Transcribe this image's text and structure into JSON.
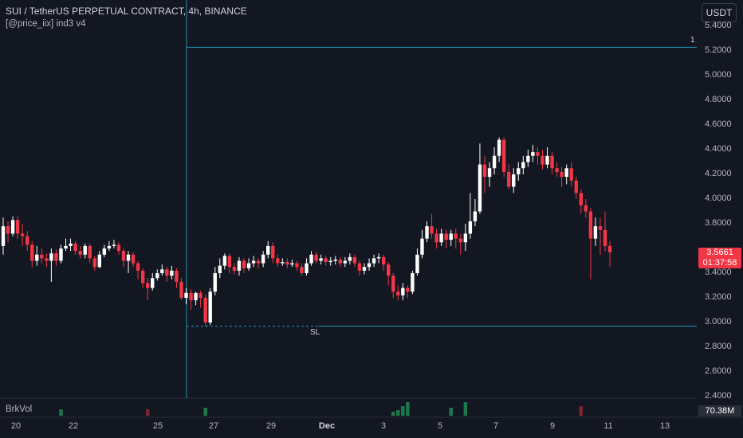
{
  "legend": {
    "title": "SUI / TetherUS PERPETUAL CONTRACT, 4h, BINANCE",
    "indicator": "[@price_iix] ind3 v4"
  },
  "currency_button": "USDT",
  "price_axis": {
    "ticks": [
      "5.4000",
      "5.2000",
      "5.0000",
      "4.8000",
      "4.6000",
      "4.4000",
      "4.2000",
      "4.0000",
      "3.8000",
      "3.4000",
      "3.2000",
      "3.0000",
      "2.8000",
      "2.6000",
      "2.4000"
    ]
  },
  "time_axis": {
    "ticks": [
      "20",
      "22",
      "25",
      "27",
      "29",
      "Dec",
      "3",
      "5",
      "7",
      "9",
      "11",
      "13"
    ]
  },
  "last_price": {
    "price": "3.5661",
    "countdown": "01:37:58"
  },
  "drawings": {
    "level_label": "1",
    "stop_label": "SL"
  },
  "volume_pane": {
    "name": "BrkVol",
    "value": "70.38M"
  },
  "colors": {
    "up": "#ffffff",
    "down": "#f23645",
    "line": "#2196b3",
    "vol_up": "#1b7a4c",
    "vol_down": "#7f2630"
  },
  "chart_data": {
    "type": "candlestick",
    "title": "SUI / TetherUS PERPETUAL CONTRACT, 4h, BINANCE",
    "ylim": [
      2.4,
      5.4
    ],
    "lines": {
      "level": 5.23,
      "stop": 2.97
    },
    "volume_spikes": [
      {
        "t": 12,
        "dir": "up",
        "level": 0.4
      },
      {
        "t": 30,
        "dir": "down",
        "level": 0.4
      },
      {
        "t": 42,
        "dir": "up",
        "level": 0.5
      },
      {
        "t": 81,
        "dir": "up",
        "level": 0.25
      },
      {
        "t": 82,
        "dir": "up",
        "level": 0.35
      },
      {
        "t": 83,
        "dir": "up",
        "level": 0.6
      },
      {
        "t": 84,
        "dir": "up",
        "level": 0.85
      },
      {
        "t": 93,
        "dir": "up",
        "level": 0.5
      },
      {
        "t": 96,
        "dir": "up",
        "level": 0.85
      },
      {
        "t": 120,
        "dir": "down",
        "level": 0.6
      }
    ],
    "candles": [
      [
        3.62,
        3.78,
        3.85,
        3.55
      ],
      [
        3.78,
        3.72,
        3.82,
        3.65
      ],
      [
        3.72,
        3.83,
        3.86,
        3.7
      ],
      [
        3.83,
        3.72,
        3.86,
        3.68
      ],
      [
        3.72,
        3.7,
        3.8,
        3.62
      ],
      [
        3.7,
        3.63,
        3.74,
        3.58
      ],
      [
        3.63,
        3.5,
        3.66,
        3.45
      ],
      [
        3.5,
        3.55,
        3.62,
        3.46
      ],
      [
        3.55,
        3.52,
        3.6,
        3.48
      ],
      [
        3.52,
        3.5,
        3.56,
        3.45
      ],
      [
        3.5,
        3.56,
        3.6,
        3.33
      ],
      [
        3.56,
        3.5,
        3.59,
        3.46
      ],
      [
        3.5,
        3.6,
        3.63,
        3.48
      ],
      [
        3.6,
        3.62,
        3.68,
        3.58
      ],
      [
        3.62,
        3.64,
        3.68,
        3.58
      ],
      [
        3.64,
        3.58,
        3.66,
        3.55
      ],
      [
        3.58,
        3.55,
        3.62,
        3.52
      ],
      [
        3.55,
        3.62,
        3.64,
        3.52
      ],
      [
        3.62,
        3.52,
        3.64,
        3.48
      ],
      [
        3.52,
        3.45,
        3.54,
        3.42
      ],
      [
        3.45,
        3.55,
        3.58,
        3.44
      ],
      [
        3.55,
        3.6,
        3.63,
        3.53
      ],
      [
        3.6,
        3.62,
        3.66,
        3.58
      ],
      [
        3.62,
        3.63,
        3.67,
        3.6
      ],
      [
        3.63,
        3.58,
        3.65,
        3.55
      ],
      [
        3.58,
        3.5,
        3.6,
        3.45
      ],
      [
        3.5,
        3.55,
        3.58,
        3.4
      ],
      [
        3.55,
        3.48,
        3.57,
        3.45
      ],
      [
        3.48,
        3.42,
        3.5,
        3.35
      ],
      [
        3.42,
        3.32,
        3.44,
        3.28
      ],
      [
        3.32,
        3.28,
        3.36,
        3.18
      ],
      [
        3.28,
        3.36,
        3.4,
        3.26
      ],
      [
        3.36,
        3.4,
        3.43,
        3.34
      ],
      [
        3.4,
        3.43,
        3.47,
        3.38
      ],
      [
        3.43,
        3.38,
        3.45,
        3.33
      ],
      [
        3.38,
        3.42,
        3.46,
        3.35
      ],
      [
        3.42,
        3.33,
        3.44,
        3.28
      ],
      [
        3.33,
        3.2,
        3.36,
        3.18
      ],
      [
        3.2,
        3.24,
        3.28,
        3.15
      ],
      [
        3.24,
        3.18,
        3.27,
        3.1
      ],
      [
        3.18,
        3.24,
        3.25,
        3.14
      ],
      [
        3.24,
        3.2,
        3.26,
        3.12
      ],
      [
        3.2,
        3.0,
        3.23,
        2.97
      ],
      [
        3.0,
        3.25,
        3.28,
        2.98
      ],
      [
        3.25,
        3.4,
        3.45,
        3.22
      ],
      [
        3.4,
        3.46,
        3.52,
        3.36
      ],
      [
        3.46,
        3.54,
        3.56,
        3.43
      ],
      [
        3.54,
        3.45,
        3.56,
        3.4
      ],
      [
        3.45,
        3.42,
        3.48,
        3.39
      ],
      [
        3.42,
        3.5,
        3.53,
        3.38
      ],
      [
        3.5,
        3.44,
        3.52,
        3.4
      ],
      [
        3.44,
        3.48,
        3.52,
        3.42
      ],
      [
        3.48,
        3.5,
        3.54,
        3.45
      ],
      [
        3.5,
        3.48,
        3.52,
        3.44
      ],
      [
        3.48,
        3.55,
        3.58,
        3.45
      ],
      [
        3.55,
        3.62,
        3.66,
        3.52
      ],
      [
        3.62,
        3.52,
        3.65,
        3.48
      ],
      [
        3.52,
        3.48,
        3.55,
        3.45
      ],
      [
        3.48,
        3.49,
        3.52,
        3.46
      ],
      [
        3.49,
        3.47,
        3.52,
        3.44
      ],
      [
        3.47,
        3.48,
        3.51,
        3.45
      ],
      [
        3.48,
        3.45,
        3.5,
        3.42
      ],
      [
        3.45,
        3.4,
        3.48,
        3.38
      ],
      [
        3.4,
        3.48,
        3.52,
        3.38
      ],
      [
        3.48,
        3.55,
        3.58,
        3.46
      ],
      [
        3.55,
        3.5,
        3.57,
        3.48
      ],
      [
        3.5,
        3.52,
        3.55,
        3.47
      ],
      [
        3.52,
        3.49,
        3.54,
        3.46
      ],
      [
        3.49,
        3.5,
        3.53,
        3.46
      ],
      [
        3.5,
        3.51,
        3.54,
        3.47
      ],
      [
        3.51,
        3.48,
        3.53,
        3.45
      ],
      [
        3.48,
        3.5,
        3.53,
        3.45
      ],
      [
        3.5,
        3.53,
        3.56,
        3.47
      ],
      [
        3.53,
        3.48,
        3.55,
        3.45
      ],
      [
        3.48,
        3.42,
        3.5,
        3.38
      ],
      [
        3.42,
        3.45,
        3.48,
        3.39
      ],
      [
        3.45,
        3.48,
        3.52,
        3.42
      ],
      [
        3.48,
        3.52,
        3.55,
        3.45
      ],
      [
        3.52,
        3.53,
        3.56,
        3.48
      ],
      [
        3.53,
        3.47,
        3.55,
        3.42
      ],
      [
        3.47,
        3.38,
        3.49,
        3.3
      ],
      [
        3.38,
        3.25,
        3.4,
        3.2
      ],
      [
        3.25,
        3.22,
        3.3,
        3.18
      ],
      [
        3.22,
        3.28,
        3.32,
        3.18
      ],
      [
        3.28,
        3.25,
        3.3,
        3.2
      ],
      [
        3.25,
        3.4,
        3.42,
        3.23
      ],
      [
        3.4,
        3.55,
        3.6,
        3.38
      ],
      [
        3.55,
        3.68,
        3.75,
        3.52
      ],
      [
        3.68,
        3.78,
        3.82,
        3.65
      ],
      [
        3.78,
        3.72,
        3.88,
        3.68
      ],
      [
        3.72,
        3.65,
        3.76,
        3.6
      ],
      [
        3.65,
        3.72,
        3.76,
        3.62
      ],
      [
        3.72,
        3.67,
        3.75,
        3.6
      ],
      [
        3.67,
        3.72,
        3.75,
        3.62
      ],
      [
        3.72,
        3.68,
        3.76,
        3.6
      ],
      [
        3.68,
        3.65,
        3.72,
        3.55
      ],
      [
        3.65,
        3.72,
        3.8,
        3.58
      ],
      [
        3.72,
        3.82,
        4.05,
        3.68
      ],
      [
        3.82,
        3.9,
        4.0,
        3.78
      ],
      [
        3.9,
        4.28,
        4.45,
        3.88
      ],
      [
        4.28,
        4.18,
        4.35,
        4.05
      ],
      [
        4.18,
        4.25,
        4.3,
        4.1
      ],
      [
        4.25,
        4.35,
        4.42,
        4.2
      ],
      [
        4.35,
        4.48,
        4.5,
        4.3
      ],
      [
        4.48,
        4.22,
        4.5,
        4.18
      ],
      [
        4.22,
        4.1,
        4.28,
        4.08
      ],
      [
        4.1,
        4.2,
        4.25,
        4.05
      ],
      [
        4.2,
        4.25,
        4.3,
        4.15
      ],
      [
        4.25,
        4.3,
        4.35,
        4.2
      ],
      [
        4.3,
        4.35,
        4.4,
        4.26
      ],
      [
        4.35,
        4.38,
        4.44,
        4.3
      ],
      [
        4.38,
        4.35,
        4.42,
        4.28
      ],
      [
        4.35,
        4.28,
        4.4,
        4.24
      ],
      [
        4.28,
        4.35,
        4.42,
        4.25
      ],
      [
        4.35,
        4.25,
        4.38,
        4.2
      ],
      [
        4.25,
        4.22,
        4.3,
        4.18
      ],
      [
        4.22,
        4.18,
        4.26,
        4.1
      ],
      [
        4.18,
        4.25,
        4.28,
        4.12
      ],
      [
        4.25,
        4.15,
        4.3,
        4.1
      ],
      [
        4.15,
        4.05,
        4.18,
        4.0
      ],
      [
        4.05,
        3.95,
        4.08,
        3.88
      ],
      [
        3.95,
        3.9,
        4.0,
        3.85
      ],
      [
        3.9,
        3.68,
        3.93,
        3.35
      ],
      [
        3.68,
        3.78,
        3.85,
        3.62
      ],
      [
        3.78,
        3.75,
        3.85,
        3.55
      ],
      [
        3.75,
        3.62,
        3.9,
        3.58
      ],
      [
        3.62,
        3.57,
        3.66,
        3.45
      ]
    ]
  }
}
